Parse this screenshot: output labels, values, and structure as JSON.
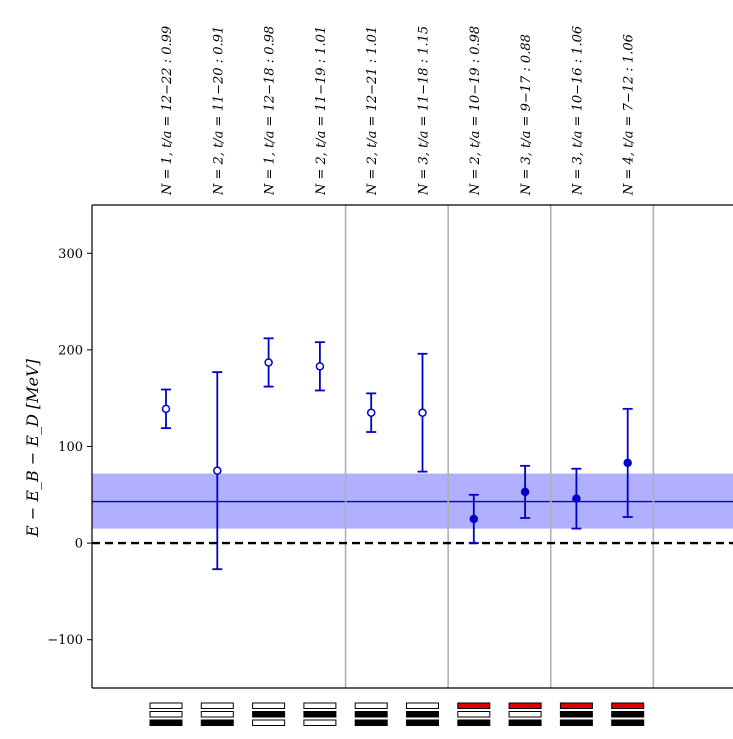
{
  "chart_data": {
    "type": "scatter",
    "ylabel": "E − E_B − E_D [MeV]",
    "ylim": [
      -150,
      350
    ],
    "yticks": [
      -100,
      0,
      100,
      200,
      300
    ],
    "ytick_labels": [
      "−100",
      "0",
      "100",
      "200",
      "300"
    ],
    "grid": false,
    "zero_line": {
      "y": 0,
      "style": "dashed",
      "color": "#000000"
    },
    "band": {
      "center": 43,
      "low": 15,
      "high": 72,
      "color": "#b0b0ff",
      "line_color": "#0000cc"
    },
    "group_separators_after_index": [
      4,
      6,
      8,
      10
    ],
    "points": [
      {
        "label": "N = 1, t/a = 12−22 : 0.99",
        "y": 139,
        "err_low": 20,
        "err_high": 20,
        "filled": false,
        "bars": [
          "white",
          "white",
          "black"
        ]
      },
      {
        "label": "N = 2, t/a = 11−20 : 0.91",
        "y": 75,
        "err_low": 102,
        "err_high": 102,
        "filled": false,
        "bars": [
          "white",
          "white",
          "black"
        ]
      },
      {
        "label": "N = 1, t/a = 12−18 : 0.98",
        "y": 187,
        "err_low": 25,
        "err_high": 25,
        "filled": false,
        "bars": [
          "white",
          "black",
          "white"
        ]
      },
      {
        "label": "N = 2, t/a = 11−19 : 1.01",
        "y": 183,
        "err_low": 25,
        "err_high": 25,
        "filled": false,
        "bars": [
          "white",
          "black",
          "white"
        ]
      },
      {
        "label": "N = 2, t/a = 12−21 : 1.01",
        "y": 135,
        "err_low": 20,
        "err_high": 20,
        "filled": false,
        "bars": [
          "white",
          "black",
          "black"
        ]
      },
      {
        "label": "N = 3, t/a = 11−18 : 1.15",
        "y": 135,
        "err_low": 61,
        "err_high": 61,
        "filled": false,
        "bars": [
          "white",
          "black",
          "black"
        ]
      },
      {
        "label": "N = 2, t/a = 10−19 : 0.98",
        "y": 25,
        "err_low": 25,
        "err_high": 25,
        "filled": true,
        "bars": [
          "red",
          "white",
          "black"
        ]
      },
      {
        "label": "N = 3, t/a = 9−17 :  0.88",
        "y": 53,
        "err_low": 27,
        "err_high": 27,
        "filled": true,
        "bars": [
          "red",
          "white",
          "black"
        ]
      },
      {
        "label": "N = 3, t/a = 10−16 : 1.06",
        "y": 46,
        "err_low": 31,
        "err_high": 31,
        "filled": true,
        "bars": [
          "red",
          "black",
          "black"
        ]
      },
      {
        "label": "N = 4, t/a = 7−12 :  1.06",
        "y": 83,
        "err_low": 56,
        "err_high": 56,
        "filled": true,
        "bars": [
          "red",
          "black",
          "black"
        ]
      }
    ]
  },
  "colors": {
    "marker": "#0000cc",
    "separator": "#b0b0b0",
    "bar_red": "#e00000",
    "bar_black": "#000000",
    "bar_white": "#ffffff"
  }
}
